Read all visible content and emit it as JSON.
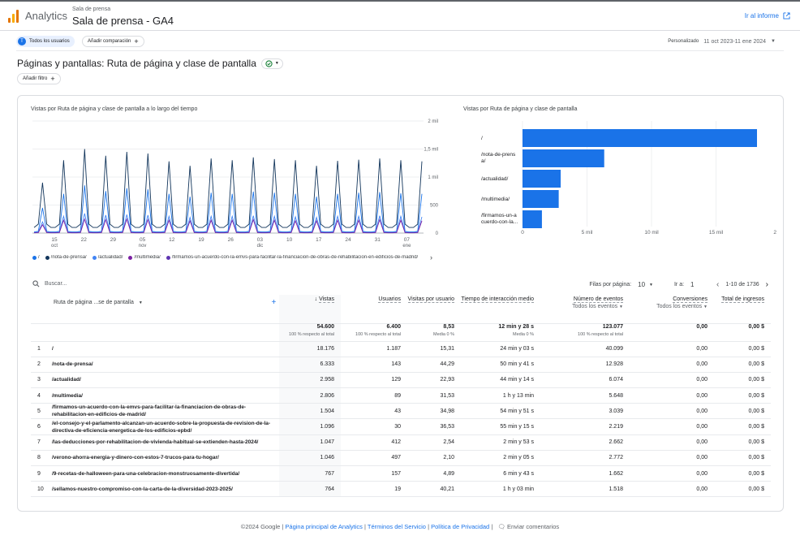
{
  "header": {
    "app_name": "Analytics",
    "property_small": "Sala de prensa",
    "property_name": "Sala de prensa - GA4",
    "go_report": "Ir al informe"
  },
  "toolbar": {
    "segment_avatar": "T",
    "segment_label": "Todos los usuarios",
    "compare_label": "Añadir comparación",
    "date_label": "Personalizado",
    "date_range": "11 oct 2023-11 ene 2024"
  },
  "page": {
    "title": "Páginas y pantallas: Ruta de página y clase de pantalla",
    "add_filter": "Añadir filtro"
  },
  "line_chart": {
    "title": "Vistas por Ruta de página y clase de pantalla a lo largo del tiempo",
    "yticks": [
      "2 mil",
      "1,5 mil",
      "1 mil",
      "500",
      "0"
    ],
    "xticks": [
      {
        "day": "15",
        "month": "oct"
      },
      {
        "day": "22",
        "month": ""
      },
      {
        "day": "29",
        "month": ""
      },
      {
        "day": "05",
        "month": "nov"
      },
      {
        "day": "12",
        "month": ""
      },
      {
        "day": "19",
        "month": ""
      },
      {
        "day": "26",
        "month": ""
      },
      {
        "day": "03",
        "month": "dic"
      },
      {
        "day": "10",
        "month": ""
      },
      {
        "day": "17",
        "month": ""
      },
      {
        "day": "24",
        "month": ""
      },
      {
        "day": "31",
        "month": ""
      },
      {
        "day": "07",
        "month": "ene"
      }
    ],
    "legend": [
      {
        "label": "/",
        "color": "#1a73e8"
      },
      {
        "label": "/nota-de-prensa/",
        "color": "#12355b"
      },
      {
        "label": "/actualidad/",
        "color": "#4285f4"
      },
      {
        "label": "/multimedia/",
        "color": "#7b1fa2"
      },
      {
        "label": "/firmamos-un-acuerdo-con-la-emvs-para-facilitar-la-financiacion-de-obras-de-rehabilitacion-en-edificios-de-madrid/",
        "color": "#5e35b1"
      }
    ]
  },
  "chart_data": [
    {
      "type": "line",
      "title": "Vistas por Ruta de página y clase de pantalla a lo largo del tiempo",
      "ylim": [
        0,
        2000
      ],
      "x_start": "2023-10-11",
      "x_end": "2024-01-11",
      "series": [
        {
          "name": "/",
          "peaks_approx": [
            900,
            1300,
            1500,
            1380,
            1450,
            1420,
            1280,
            1200,
            1330,
            1300,
            1350,
            1320,
            1300,
            1200,
            1290,
            1310,
            1330,
            1300,
            1280
          ],
          "baseline_approx": 100
        },
        {
          "name": "/nota-de-prensa/",
          "peaks_approx": [
            450,
            700,
            850,
            750,
            800,
            780,
            700,
            650,
            720,
            700,
            740,
            720,
            700,
            650,
            700,
            720,
            730,
            710,
            700
          ],
          "baseline_approx": 20
        },
        {
          "name": "/actualidad/",
          "peaks_approx": [
            200,
            300,
            350,
            320,
            330,
            320,
            300,
            280,
            300,
            300,
            310,
            300,
            290,
            280,
            300,
            300,
            310,
            300,
            290
          ],
          "baseline_approx": 10
        },
        {
          "name": "/multimedia/",
          "peaks_approx": [
            150,
            230,
            250,
            240,
            250,
            240,
            230,
            220,
            230,
            230,
            240,
            230,
            220,
            220,
            230,
            230,
            240,
            230,
            220
          ],
          "baseline_approx": 5
        }
      ]
    },
    {
      "type": "bar",
      "orientation": "horizontal",
      "title": "Vistas por Ruta de página y clase de pantalla",
      "categories": [
        "/",
        "/nota-de-prensa/",
        "/actualidad/",
        "/multimedia/",
        "/firmamos-un-acuerdo-con-la..."
      ],
      "values": [
        18176,
        6333,
        2958,
        2806,
        1504
      ],
      "xticks": [
        "0",
        "5 mil",
        "10 mil",
        "15 mil",
        "20 mil"
      ],
      "xlim": [
        0,
        20000
      ]
    }
  ],
  "bar_chart": {
    "title": "Vistas por Ruta de página y clase de pantalla",
    "labels": [
      [
        "/"
      ],
      [
        "/nota-de-prens",
        "a/"
      ],
      [
        "/actualidad/"
      ],
      [
        "/multimedia/"
      ],
      [
        "/firmamos-un-a",
        "cuerdo-con-la..."
      ]
    ],
    "xticks": [
      "0",
      "5 mil",
      "10 mil",
      "15 mil",
      "20 mil"
    ],
    "color": "#1a73e8"
  },
  "table": {
    "search_placeholder": "Buscar...",
    "rows_per_page_label": "Filas por página:",
    "rows_per_page": "10",
    "goto_label": "Ir a:",
    "goto_value": "1",
    "page_range": "1-10 de 1736",
    "dim_header": "Ruta de página ...se de pantalla",
    "columns": [
      {
        "label": "Vistas",
        "sub": "",
        "sorted": true
      },
      {
        "label": "Usuarios",
        "sub": ""
      },
      {
        "label": "Visitas por usuario",
        "sub": ""
      },
      {
        "label": "Tiempo de interacción medio",
        "sub": ""
      },
      {
        "label": "Número de eventos",
        "sub": "Todos los eventos"
      },
      {
        "label": "Conversiones",
        "sub": "Todos los eventos"
      },
      {
        "label": "Total de ingresos",
        "sub": ""
      }
    ],
    "totals": [
      {
        "value": "54.600",
        "note": "100 % respecto al total"
      },
      {
        "value": "6.400",
        "note": "100 % respecto al total"
      },
      {
        "value": "8,53",
        "note": "Media 0 %"
      },
      {
        "value": "12 min y 28 s",
        "note": "Media 0 %"
      },
      {
        "value": "123.077",
        "note": "100 % respecto al total"
      },
      {
        "value": "0,00",
        "note": ""
      },
      {
        "value": "0,00 $",
        "note": ""
      }
    ],
    "rows": [
      {
        "idx": "1",
        "path": "/",
        "cells": [
          "18.176",
          "1.187",
          "15,31",
          "24 min y 03 s",
          "40.099",
          "0,00",
          "0,00 $"
        ]
      },
      {
        "idx": "2",
        "path": "/nota-de-prensa/",
        "cells": [
          "6.333",
          "143",
          "44,29",
          "50 min y 41 s",
          "12.928",
          "0,00",
          "0,00 $"
        ]
      },
      {
        "idx": "3",
        "path": "/actualidad/",
        "cells": [
          "2.958",
          "129",
          "22,93",
          "44 min y 14 s",
          "6.074",
          "0,00",
          "0,00 $"
        ]
      },
      {
        "idx": "4",
        "path": "/multimedia/",
        "cells": [
          "2.806",
          "89",
          "31,53",
          "1 h y 13 min",
          "5.648",
          "0,00",
          "0,00 $"
        ]
      },
      {
        "idx": "5",
        "path": "/firmamos-un-acuerdo-con-la-emvs-para-facilitar-la-financiacion-de-obras-de-rehabilitacion-en-edificios-de-madrid/",
        "cells": [
          "1.504",
          "43",
          "34,98",
          "54 min y 51 s",
          "3.039",
          "0,00",
          "0,00 $"
        ]
      },
      {
        "idx": "6",
        "path": "/el-consejo-y-el-parlamento-alcanzan-un-acuerdo-sobre-la-propuesta-de-revision-de-la-directiva-de-eficiencia-energetica-de-los-edificios-epbd/",
        "cells": [
          "1.096",
          "30",
          "36,53",
          "55 min y 15 s",
          "2.219",
          "0,00",
          "0,00 $"
        ]
      },
      {
        "idx": "7",
        "path": "/las-deducciones-por-rehabilitacion-de-vivienda-habitual-se-extienden-hasta-2024/",
        "cells": [
          "1.047",
          "412",
          "2,54",
          "2 min y 53 s",
          "2.662",
          "0,00",
          "0,00 $"
        ]
      },
      {
        "idx": "8",
        "path": "/verono-ahorra-energia-y-dinero-con-estos-7-trucos-para-tu-hogar/",
        "cells": [
          "1.046",
          "497",
          "2,10",
          "2 min y 05 s",
          "2.772",
          "0,00",
          "0,00 $"
        ]
      },
      {
        "idx": "9",
        "path": "/9-recetas-de-halloween-para-una-celebracion-monstruosamente-divertida/",
        "cells": [
          "767",
          "157",
          "4,89",
          "6 min y 43 s",
          "1.662",
          "0,00",
          "0,00 $"
        ]
      },
      {
        "idx": "10",
        "path": "/sellamos-nuestro-compromiso-con-la-carta-de-la-diversidad-2023-2025/",
        "cells": [
          "764",
          "19",
          "40,21",
          "1 h y 03 min",
          "1.518",
          "0,00",
          "0,00 $"
        ]
      }
    ]
  },
  "footer": {
    "copyright": "©2024 Google",
    "links": [
      "Página principal de Analytics",
      "Términos del Servicio",
      "Política de Privacidad"
    ],
    "feedback": "Enviar comentarios"
  }
}
